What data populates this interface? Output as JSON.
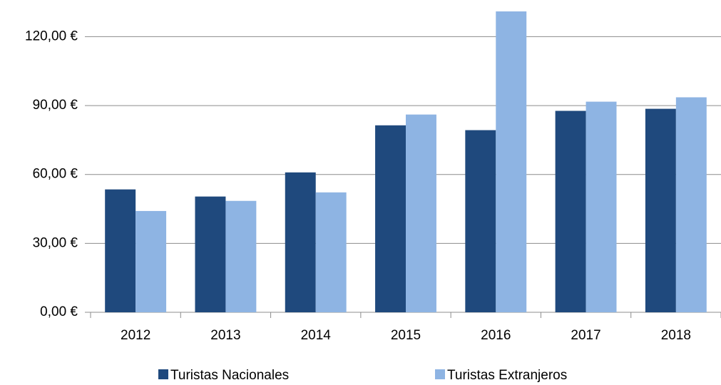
{
  "chart_data": {
    "type": "bar",
    "categories": [
      "2012",
      "2013",
      "2014",
      "2015",
      "2016",
      "2017",
      "2018"
    ],
    "series": [
      {
        "name": "Turistas Nacionales",
        "color": "#1f497d",
        "values": [
          53.5,
          50.4,
          60.9,
          81.4,
          79.3,
          87.7,
          88.6
        ]
      },
      {
        "name": "Turistas Extranjeros",
        "color": "#8eb4e3",
        "values": [
          44.1,
          48.5,
          52.2,
          86.1,
          131,
          91.7,
          93.6
        ]
      }
    ],
    "ylim": [
      0,
      131
    ],
    "yticks": [
      {
        "value": 0,
        "label": "0,00 €"
      },
      {
        "value": 30,
        "label": "30,00 €"
      },
      {
        "value": 60,
        "label": "60,00 €"
      },
      {
        "value": 90,
        "label": "90,00 €"
      },
      {
        "value": 120,
        "label": "120,00 €"
      }
    ],
    "grid": true,
    "legend": "bottom"
  }
}
